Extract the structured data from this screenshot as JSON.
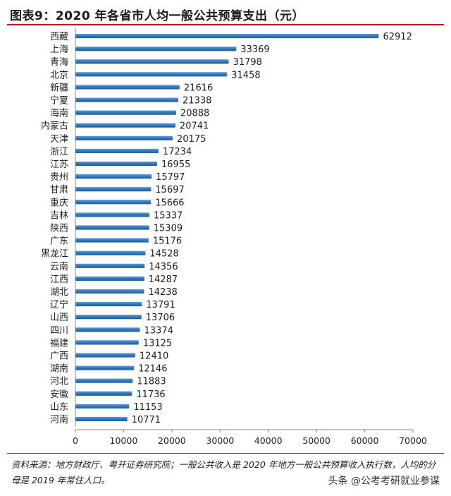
{
  "title": "图表9：2020 年各省市人均一般公共预算支出（元）",
  "chart_data": {
    "type": "bar",
    "orientation": "horizontal",
    "title": "2020 年各省市人均一般公共预算支出（元）",
    "categories": [
      "西藏",
      "上海",
      "青海",
      "北京",
      "新疆",
      "宁夏",
      "海南",
      "内蒙古",
      "天津",
      "浙江",
      "江苏",
      "贵州",
      "甘肃",
      "重庆",
      "吉林",
      "陕西",
      "广东",
      "黑龙江",
      "云南",
      "江西",
      "湖北",
      "辽宁",
      "山西",
      "四川",
      "福建",
      "广西",
      "湖南",
      "河北",
      "安徽",
      "山东",
      "河南"
    ],
    "values": [
      62912,
      33369,
      31798,
      31458,
      21616,
      21338,
      20888,
      20741,
      20175,
      17234,
      16955,
      15797,
      15697,
      15666,
      15337,
      15309,
      15176,
      14528,
      14356,
      14287,
      14238,
      13791,
      13706,
      13374,
      13125,
      12410,
      12146,
      11883,
      11736,
      11153,
      10771
    ],
    "xlim": [
      0,
      70000
    ],
    "xticks": [
      0,
      10000,
      20000,
      30000,
      40000,
      50000,
      60000,
      70000
    ],
    "xlabel": "",
    "ylabel": "",
    "grid": false,
    "legend": "none",
    "bar_color": "#2e78bf"
  },
  "source": "资料来源：地方财政厅、粤开证券研究院；一般公共收入是 2020 年地方一般公共预算收入执行数，人均的分母是 2019 年常住人口。",
  "watermark": "头条 @公考考研就业参谋"
}
